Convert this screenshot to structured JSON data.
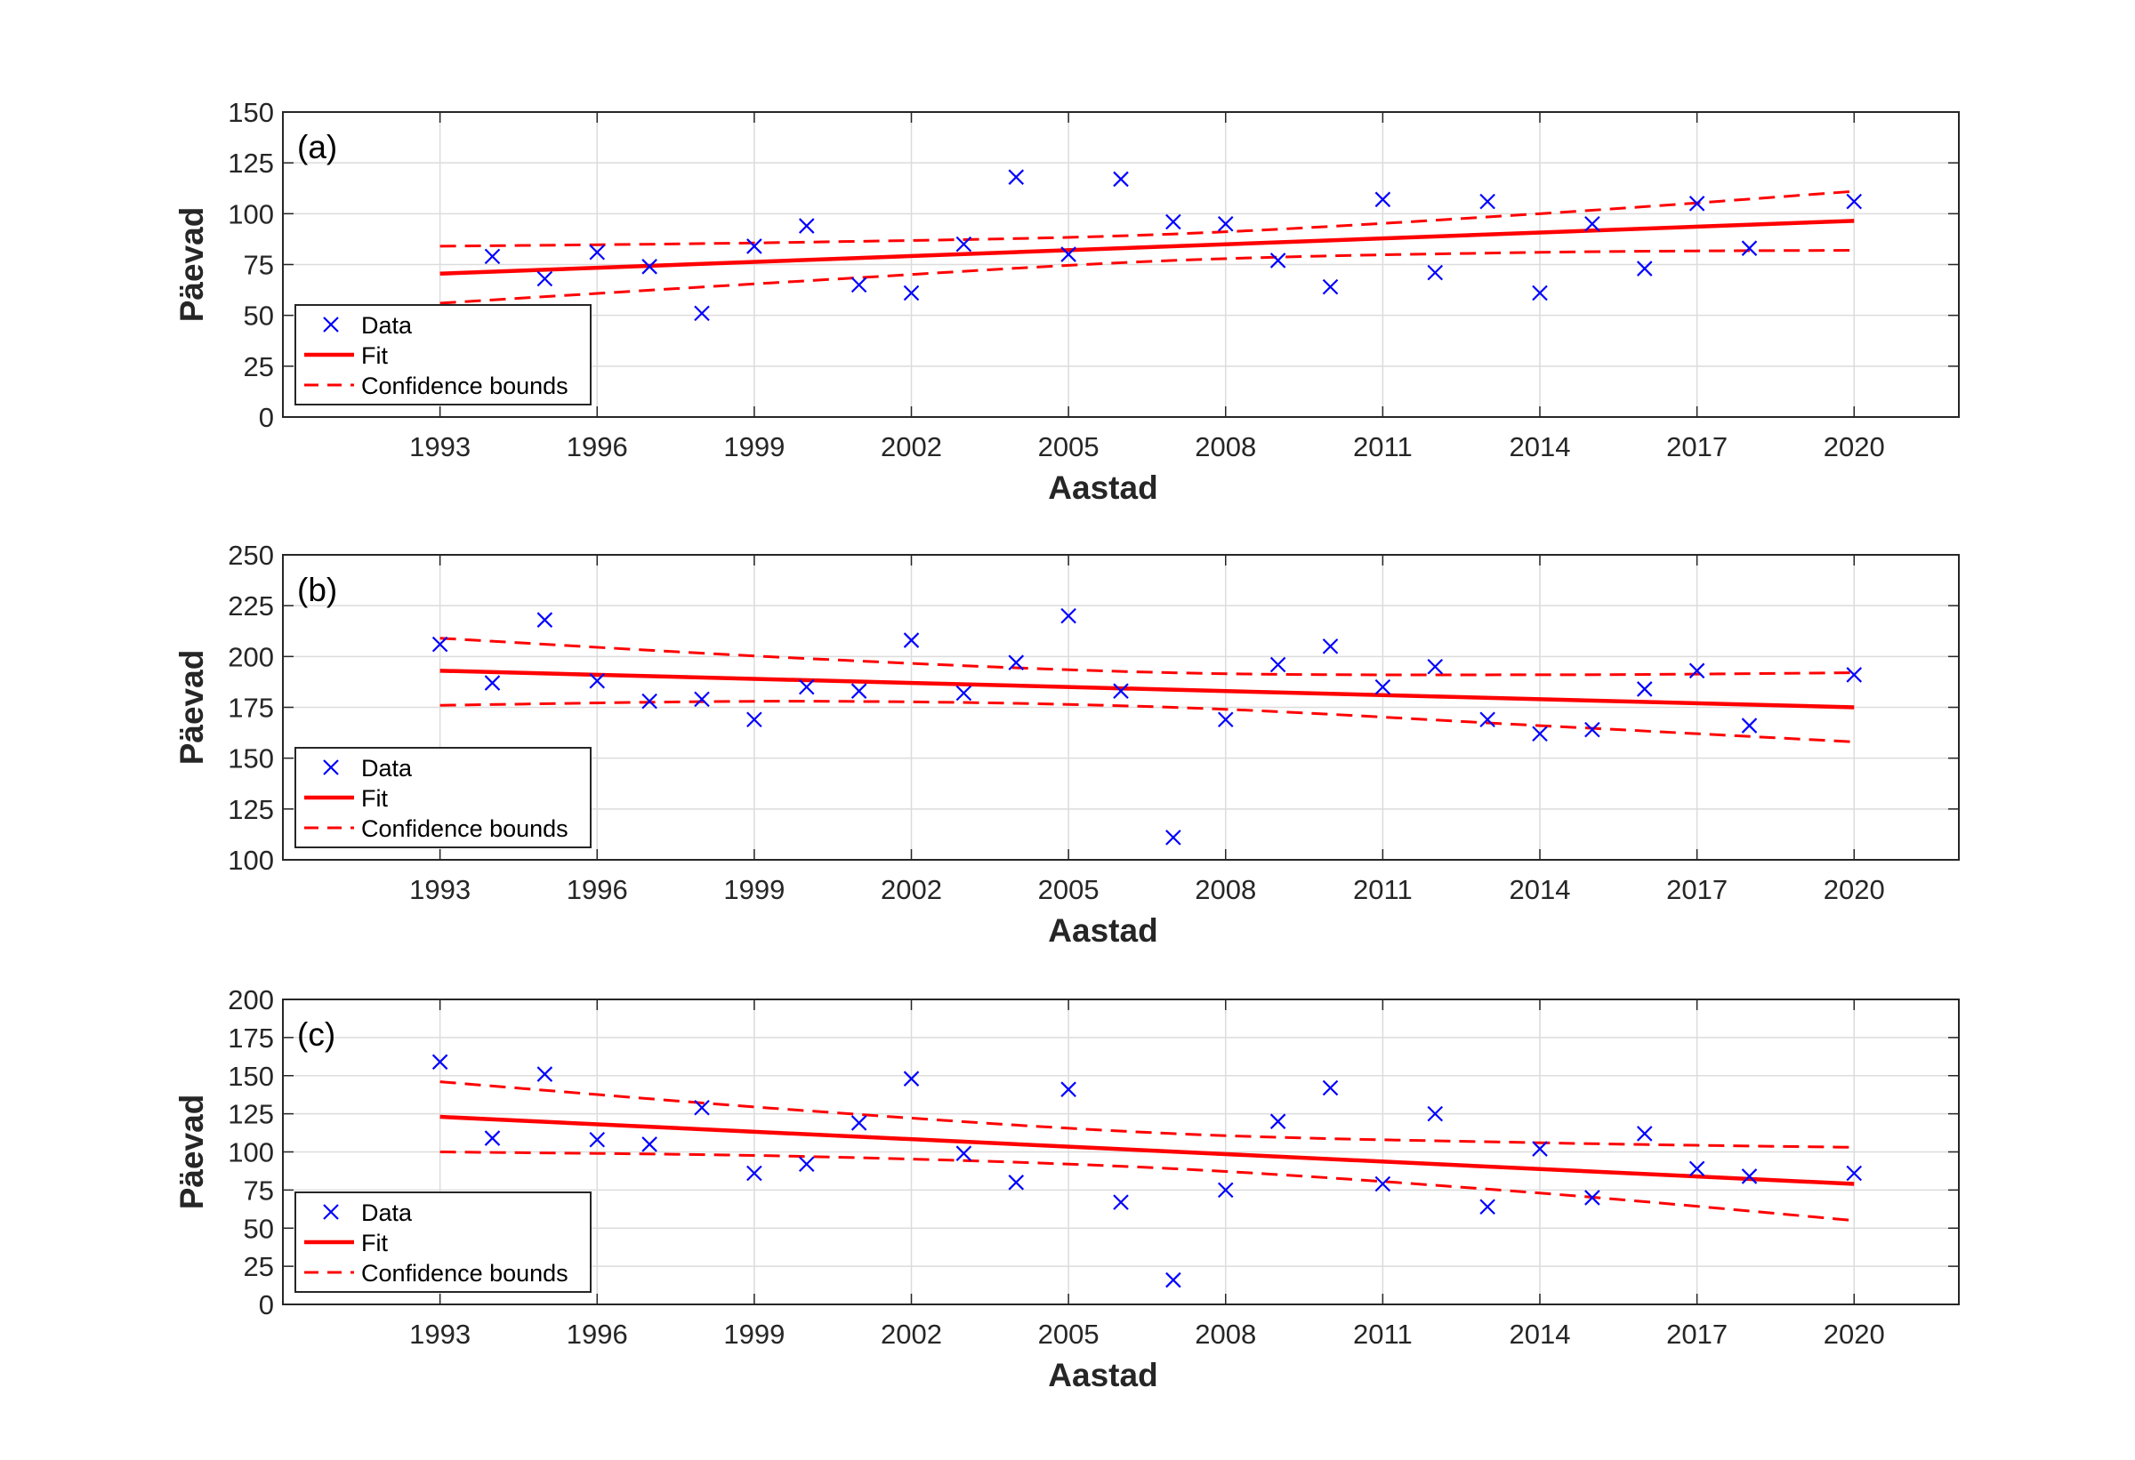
{
  "chart_data": [
    {
      "type": "scatter",
      "panel_label": "(a)",
      "xlabel": "Aastad",
      "ylabel": "Päevad",
      "xlim": [
        1990,
        2022
      ],
      "ylim": [
        0,
        150
      ],
      "xticks": [
        1993,
        1996,
        1999,
        2002,
        2005,
        2008,
        2011,
        2014,
        2017,
        2020
      ],
      "yticks": [
        0,
        25,
        50,
        75,
        100,
        125,
        150
      ],
      "grid": true,
      "legend_placement": "bottom-left",
      "legend": [
        "Data",
        "Fit",
        "Confidence bounds"
      ],
      "data": {
        "x": [
          1994,
          1995,
          1996,
          1997,
          1998,
          1999,
          2000,
          2001,
          2002,
          2003,
          2004,
          2005,
          2006,
          2007,
          2008,
          2009,
          2010,
          2011,
          2012,
          2013,
          2014,
          2015,
          2016,
          2017,
          2018,
          2020
        ],
        "y": [
          79,
          68,
          81,
          74,
          51,
          84,
          94,
          65,
          61,
          85,
          118,
          80,
          117,
          96,
          95,
          77,
          64,
          107,
          71,
          106,
          61,
          95,
          73,
          105,
          83,
          106
        ]
      },
      "fit": {
        "x": [
          1993,
          2020
        ],
        "y": [
          70.5,
          96.5
        ]
      },
      "bounds": {
        "x": [
          1993,
          2000,
          2007,
          2014,
          2020
        ],
        "upper": [
          84,
          86,
          90,
          100,
          111
        ],
        "lower": [
          56,
          67,
          77,
          81,
          82
        ]
      }
    },
    {
      "type": "scatter",
      "panel_label": "(b)",
      "xlabel": "Aastad",
      "ylabel": "Päevad",
      "xlim": [
        1990,
        2022
      ],
      "ylim": [
        100,
        250
      ],
      "xticks": [
        1993,
        1996,
        1999,
        2002,
        2005,
        2008,
        2011,
        2014,
        2017,
        2020
      ],
      "yticks": [
        100,
        125,
        150,
        175,
        200,
        225,
        250
      ],
      "grid": true,
      "legend_placement": "bottom-left",
      "legend": [
        "Data",
        "Fit",
        "Confidence bounds"
      ],
      "data": {
        "x": [
          1993,
          1994,
          1995,
          1996,
          1997,
          1998,
          1999,
          2000,
          2001,
          2002,
          2003,
          2004,
          2005,
          2006,
          2007,
          2008,
          2009,
          2010,
          2011,
          2012,
          2013,
          2014,
          2015,
          2016,
          2017,
          2018,
          2020
        ],
        "y": [
          206,
          187,
          218,
          188,
          178,
          179,
          169,
          185,
          183,
          208,
          182,
          197,
          220,
          183,
          111,
          169,
          196,
          205,
          185,
          195,
          169,
          162,
          164,
          184,
          193,
          166,
          191
        ]
      },
      "fit": {
        "x": [
          1993,
          2020
        ],
        "y": [
          193,
          175
        ]
      },
      "bounds": {
        "x": [
          1993,
          2000,
          2007,
          2014,
          2020
        ],
        "upper": [
          209,
          199,
          192,
          191,
          192
        ],
        "lower": [
          176,
          178,
          175,
          166,
          158
        ]
      }
    },
    {
      "type": "scatter",
      "panel_label": "(c)",
      "xlabel": "Aastad",
      "ylabel": "Päevad",
      "xlim": [
        1990,
        2022
      ],
      "ylim": [
        0,
        200
      ],
      "xticks": [
        1993,
        1996,
        1999,
        2002,
        2005,
        2008,
        2011,
        2014,
        2017,
        2020
      ],
      "yticks": [
        0,
        25,
        50,
        75,
        100,
        125,
        150,
        175,
        200
      ],
      "grid": true,
      "legend_placement": "bottom-left",
      "legend": [
        "Data",
        "Fit",
        "Confidence bounds"
      ],
      "data": {
        "x": [
          1993,
          1994,
          1995,
          1996,
          1997,
          1998,
          1999,
          2000,
          2001,
          2002,
          2003,
          2004,
          2005,
          2006,
          2007,
          2008,
          2009,
          2010,
          2011,
          2012,
          2013,
          2014,
          2015,
          2016,
          2017,
          2018,
          2020
        ],
        "y": [
          159,
          109,
          151,
          108,
          105,
          129,
          86,
          92,
          119,
          148,
          99,
          80,
          141,
          67,
          16,
          75,
          120,
          142,
          79,
          125,
          64,
          102,
          70,
          112,
          89,
          84,
          86
        ]
      },
      "fit": {
        "x": [
          1993,
          2020
        ],
        "y": [
          123,
          79
        ]
      },
      "bounds": {
        "x": [
          1993,
          2000,
          2007,
          2014,
          2020
        ],
        "upper": [
          146,
          127,
          112,
          106,
          103
        ],
        "lower": [
          100,
          97,
          89,
          73,
          55
        ]
      }
    }
  ],
  "colors": {
    "data": "#0000ff",
    "fit": "#ff0000",
    "bounds": "#ff0000",
    "grid": "#dcdcdc",
    "axes": "#262626"
  }
}
